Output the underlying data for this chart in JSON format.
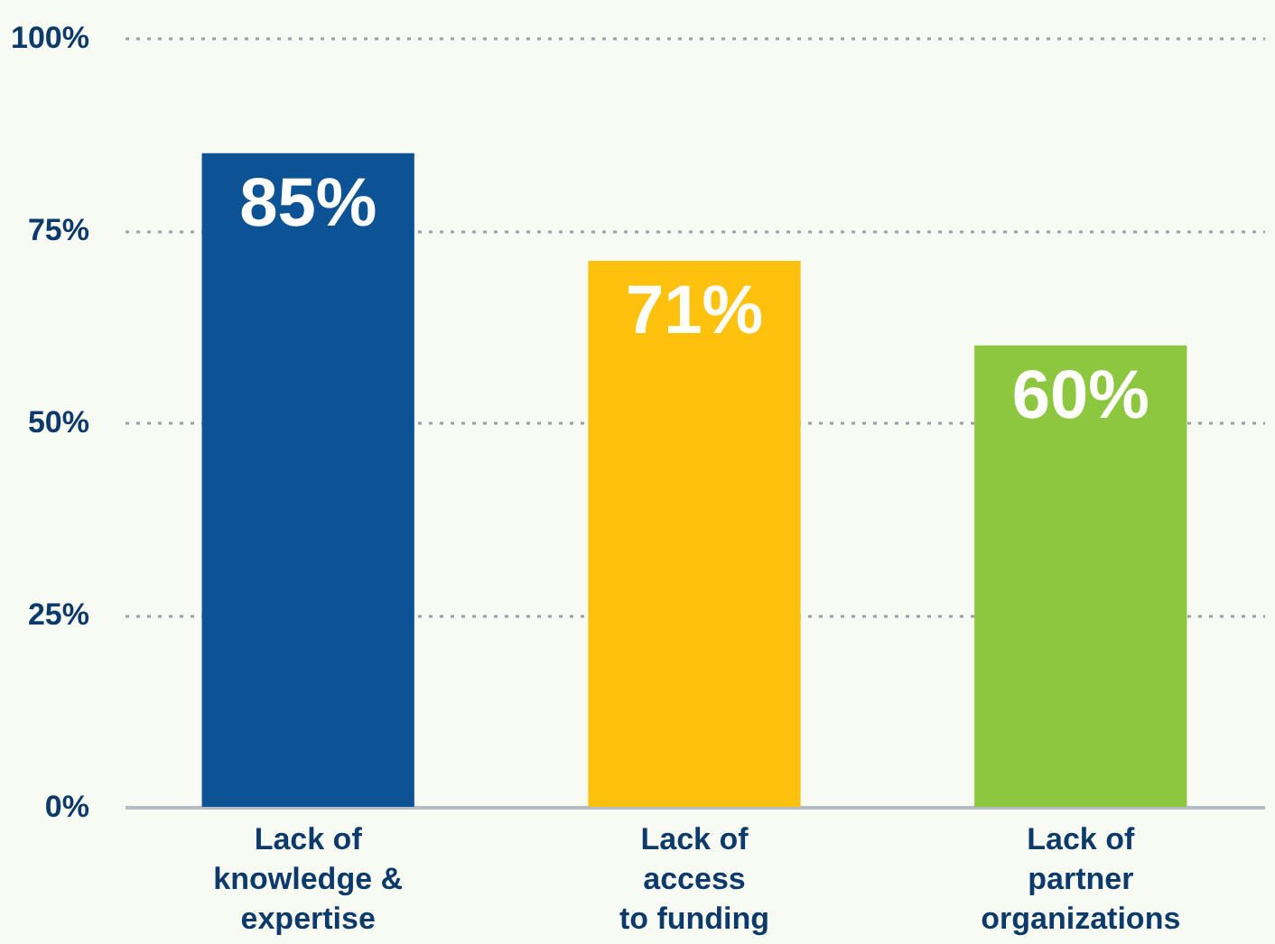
{
  "chart_data": {
    "type": "bar",
    "categories": [
      "Lack of\nknowledge &\nexpertise",
      "Lack of\naccess\nto funding",
      "Lack of\npartner\norganizations"
    ],
    "values": [
      85,
      71,
      60
    ],
    "colors": [
      "#0b5394",
      "#fec10e",
      "#8dc63f"
    ],
    "value_labels": [
      "85%",
      "71%",
      "60%"
    ],
    "ylim": [
      0,
      100
    ],
    "yticks": [
      {
        "value": 0,
        "label": "0%"
      },
      {
        "value": 25,
        "label": "25%"
      },
      {
        "value": 50,
        "label": "50%"
      },
      {
        "value": 75,
        "label": "75%"
      },
      {
        "value": 100,
        "label": "100%"
      }
    ],
    "grid": "y"
  }
}
